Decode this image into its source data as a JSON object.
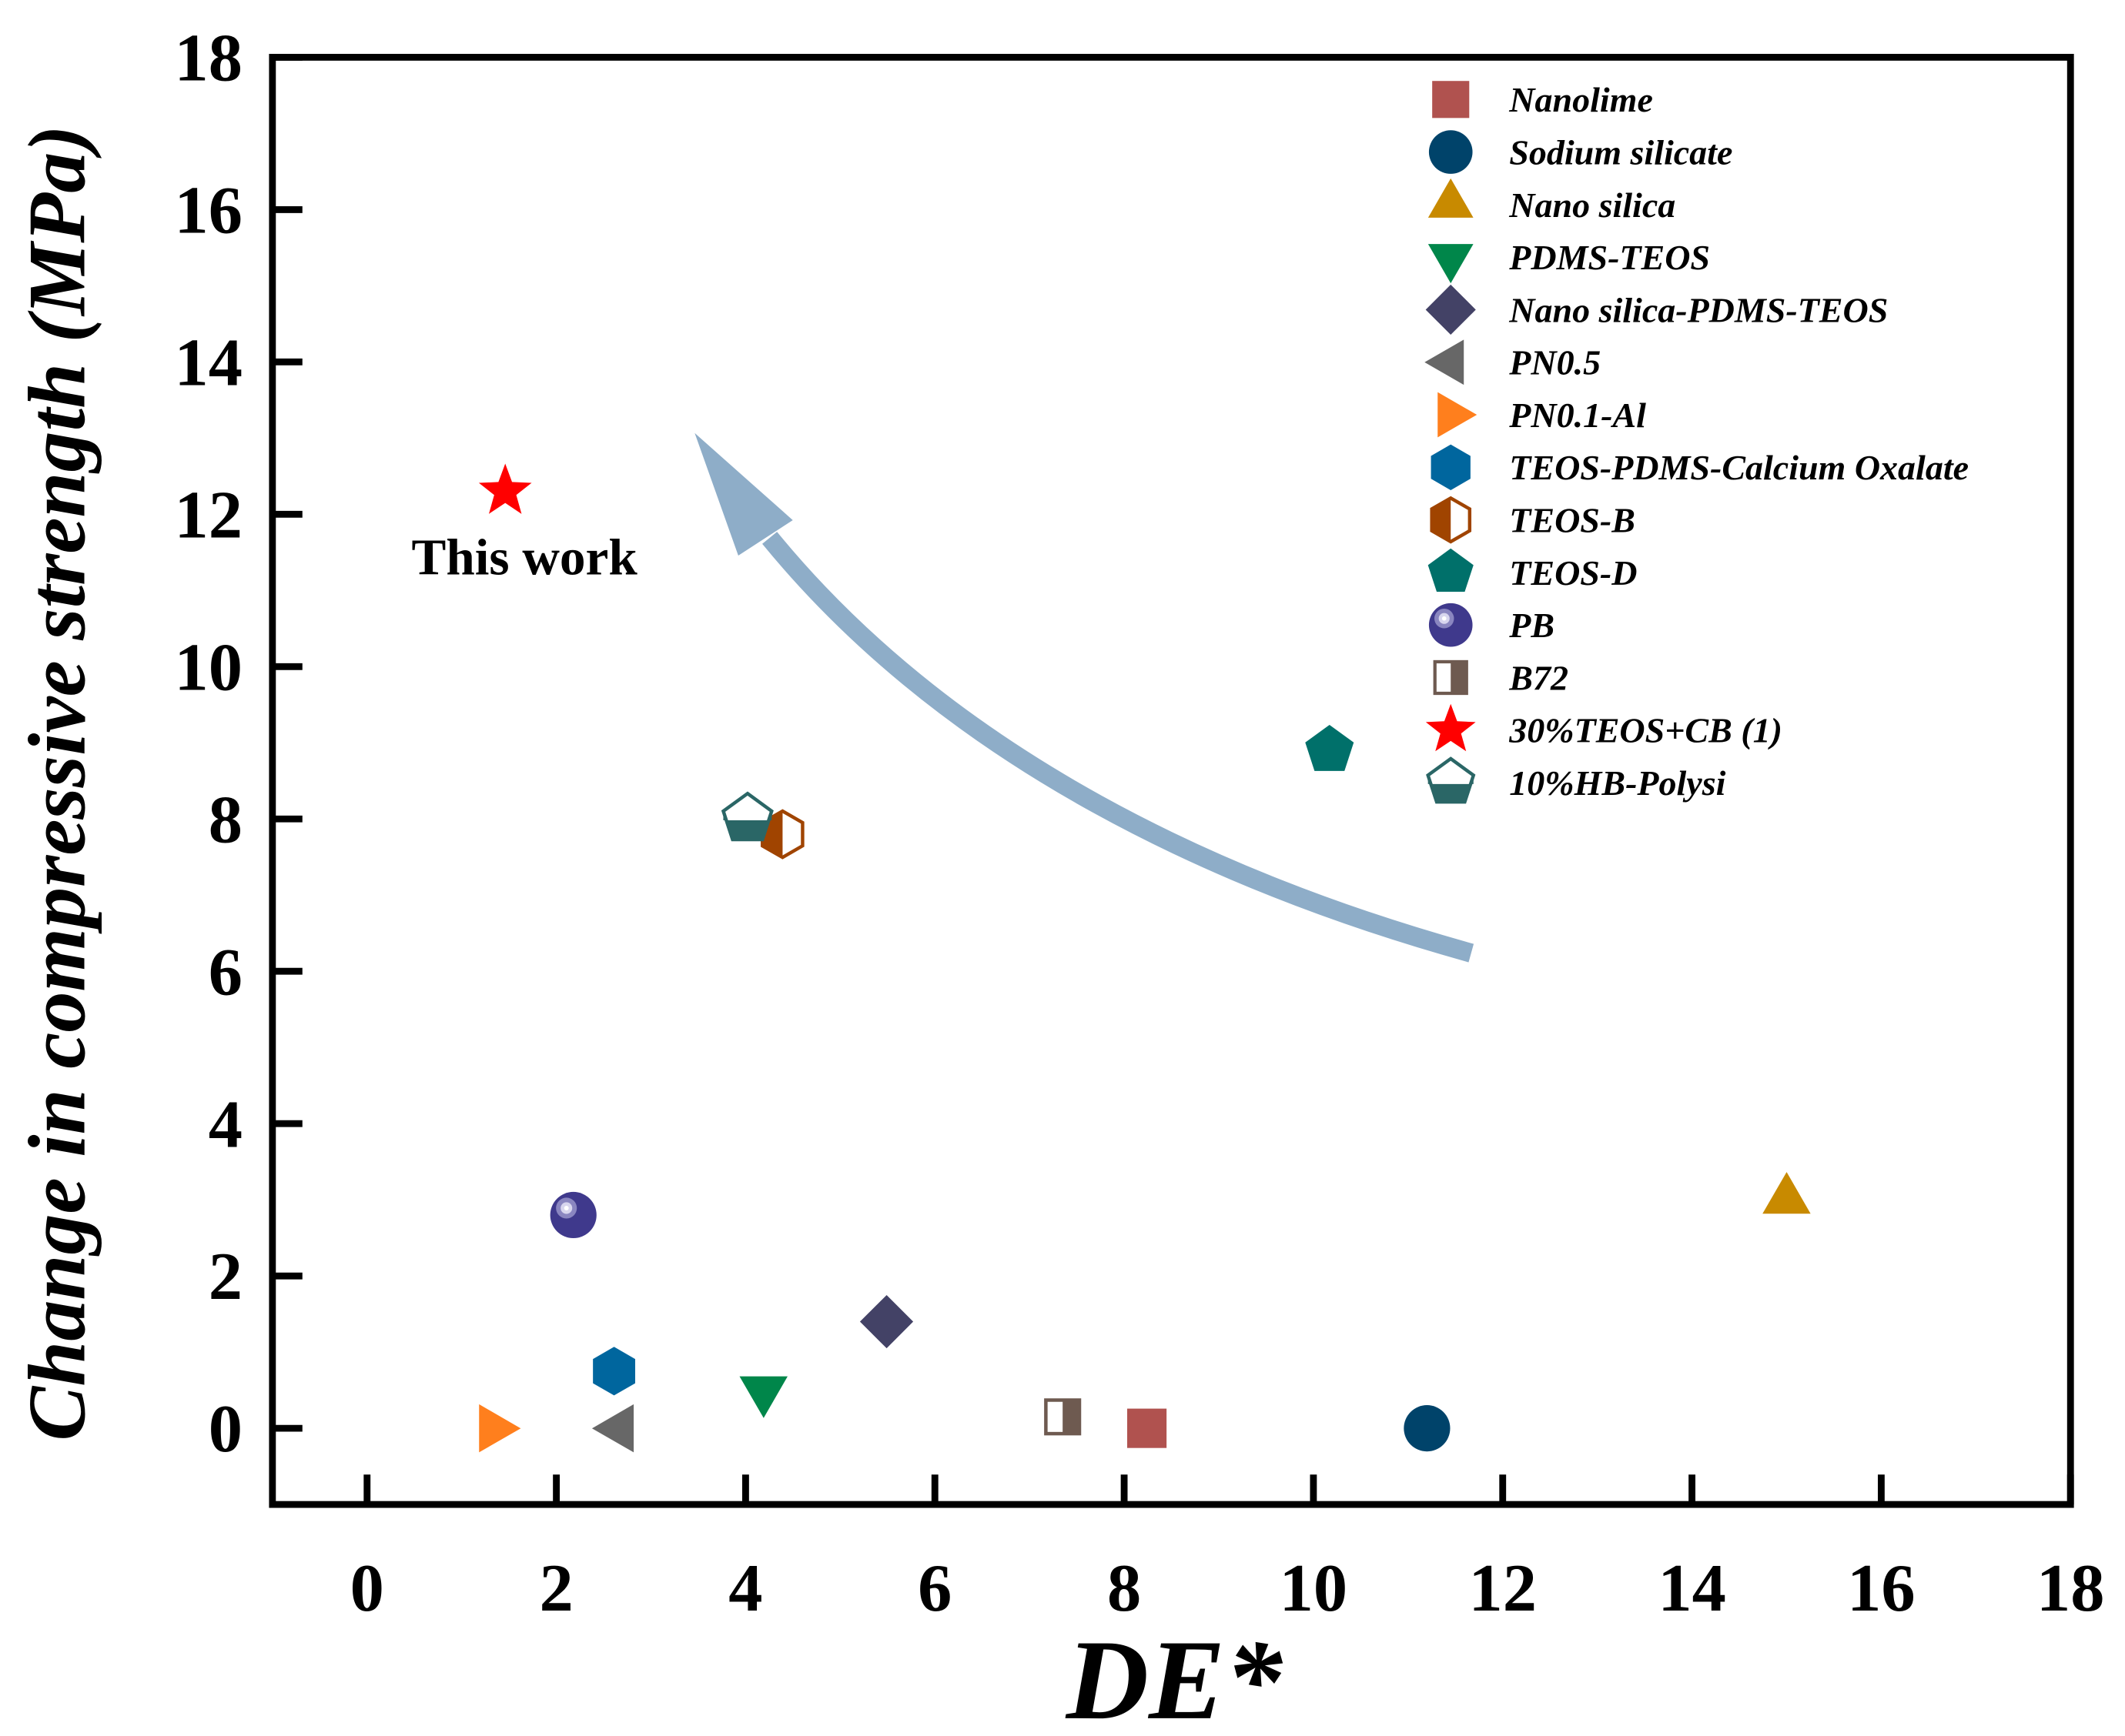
{
  "chart_data": {
    "type": "scatter",
    "title": "",
    "xlabel": "DE*",
    "ylabel": "Change in compressive strength (MPa)",
    "xlim": [
      -1,
      18
    ],
    "ylim": [
      -1,
      18
    ],
    "xticks": [
      0,
      2,
      4,
      6,
      8,
      10,
      12,
      14,
      16,
      18
    ],
    "yticks": [
      0,
      2,
      4,
      6,
      8,
      10,
      12,
      14,
      16,
      18
    ],
    "grid": false,
    "legend_position": "top-right",
    "series": [
      {
        "name": "Nanolime",
        "marker": "square",
        "color": "#B0524F",
        "x": 8.24,
        "y": 0.0
      },
      {
        "name": "Sodium silicate",
        "marker": "circle",
        "color": "#00436A",
        "x": 11.2,
        "y": 0.0
      },
      {
        "name": "Nano silica",
        "marker": "triangle-up",
        "color": "#C88A00",
        "x": 15.0,
        "y": 3.0
      },
      {
        "name": "PDMS-TEOS",
        "marker": "triangle-down",
        "color": "#00864A",
        "x": 4.19,
        "y": 0.5
      },
      {
        "name": "Nano silica-PDMS-TEOS",
        "marker": "diamond",
        "color": "#434266",
        "x": 5.49,
        "y": 1.4
      },
      {
        "name": "PN0.5",
        "marker": "triangle-left",
        "color": "#676767",
        "x": 2.67,
        "y": 0.0
      },
      {
        "name": "PN0.1-Al",
        "marker": "triangle-right",
        "color": "#FF7F1D",
        "x": 1.33,
        "y": 0.0
      },
      {
        "name": "TEOS-PDMS-Calcium Oxalate",
        "marker": "hexagon",
        "color": "#00669E",
        "x": 2.61,
        "y": 0.75
      },
      {
        "name": "TEOS-B",
        "marker": "hexagon-half",
        "color": "#A04400",
        "x": 4.39,
        "y": 7.8
      },
      {
        "name": "TEOS-D",
        "marker": "pentagon",
        "color": "#00706A",
        "x": 10.17,
        "y": 8.9
      },
      {
        "name": "PB",
        "marker": "sphere",
        "color": "#3F398C",
        "x": 2.18,
        "y": 2.8
      },
      {
        "name": "B72",
        "marker": "square-half",
        "color": "#6E5A50",
        "x": 7.35,
        "y": 0.15
      },
      {
        "name": "30%TEOS+CB (1)",
        "marker": "star",
        "color": "#FF0000",
        "x": 1.46,
        "y": 12.3
      },
      {
        "name": "10%HB-Polysi",
        "marker": "pentagon-half",
        "color": "#2A6666",
        "x": 4.02,
        "y": 8.0
      }
    ],
    "annotations": [
      {
        "text": "This work"
      }
    ],
    "arrow_color": "#8EADC8"
  }
}
